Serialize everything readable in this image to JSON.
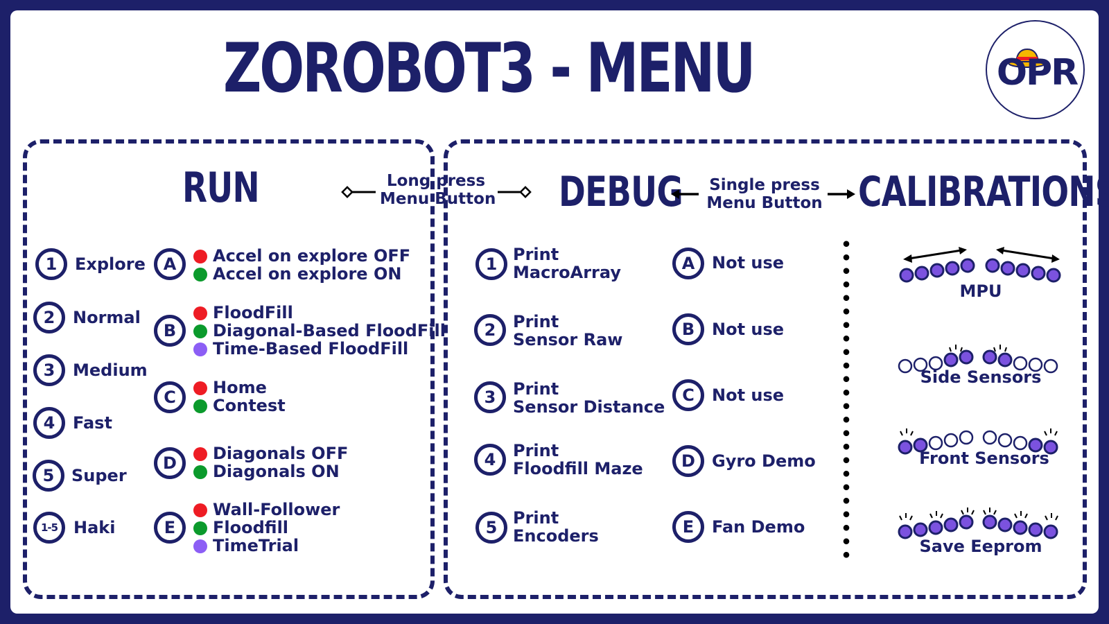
{
  "title": "ZOROBOT3 - MENU",
  "logo": {
    "text": "OPR"
  },
  "colors": {
    "navy": "#1d2069",
    "red": "#ee1c24",
    "green": "#0b9a2c",
    "purple": "#8c5ef5",
    "white": "#ffffff"
  },
  "run": {
    "title": "RUN",
    "modes": [
      {
        "badge": "1",
        "label": "Explore"
      },
      {
        "badge": "2",
        "label": "Normal"
      },
      {
        "badge": "3",
        "label": "Medium"
      },
      {
        "badge": "4",
        "label": "Fast"
      },
      {
        "badge": "5",
        "label": "Super"
      },
      {
        "badge": "1-5",
        "label": "Haki"
      }
    ],
    "options": [
      {
        "badge": "A",
        "items": [
          {
            "color": "red",
            "label": "Accel on explore OFF"
          },
          {
            "color": "green",
            "label": "Accel on explore ON"
          }
        ]
      },
      {
        "badge": "B",
        "items": [
          {
            "color": "red",
            "label": "FloodFill"
          },
          {
            "color": "green",
            "label": "Diagonal-Based FloodFill"
          },
          {
            "color": "purple",
            "label": "Time-Based FloodFill"
          }
        ]
      },
      {
        "badge": "C",
        "items": [
          {
            "color": "red",
            "label": "Home"
          },
          {
            "color": "green",
            "label": "Contest"
          }
        ]
      },
      {
        "badge": "D",
        "items": [
          {
            "color": "red",
            "label": "Diagonals OFF"
          },
          {
            "color": "green",
            "label": "Diagonals ON"
          }
        ]
      },
      {
        "badge": "E",
        "items": [
          {
            "color": "red",
            "label": "Wall-Follower"
          },
          {
            "color": "green",
            "label": "Floodfill"
          },
          {
            "color": "purple",
            "label": "TimeTrial"
          }
        ]
      }
    ]
  },
  "long_press": {
    "line1": "Long press",
    "line2": "Menu Button"
  },
  "debug": {
    "title": "DEBUG",
    "items": [
      {
        "badge": "1",
        "line1": "Print",
        "line2": "MacroArray"
      },
      {
        "badge": "2",
        "line1": "Print",
        "line2": "Sensor Raw"
      },
      {
        "badge": "3",
        "line1": "Print",
        "line2": "Sensor Distance"
      },
      {
        "badge": "4",
        "line1": "Print",
        "line2": "Floodfill Maze"
      },
      {
        "badge": "5",
        "line1": "Print",
        "line2": "Encoders"
      }
    ],
    "letters": [
      {
        "badge": "A",
        "label": "Not use"
      },
      {
        "badge": "B",
        "label": "Not use"
      },
      {
        "badge": "C",
        "label": "Not use"
      },
      {
        "badge": "D",
        "label": "Gyro Demo"
      },
      {
        "badge": "E",
        "label": "Fan Demo"
      }
    ]
  },
  "single_press": {
    "line1": "Single press",
    "line2": "Menu Button"
  },
  "calibrations": {
    "title": "CALIBRATIONS",
    "items": [
      {
        "label": "MPU",
        "pattern": "tilt-arrows"
      },
      {
        "label": "Side Sensors",
        "pattern": "inner-lit"
      },
      {
        "label": "Front Sensors",
        "pattern": "outer-lit"
      },
      {
        "label": "Save Eeprom",
        "pattern": "all-lit"
      }
    ]
  }
}
